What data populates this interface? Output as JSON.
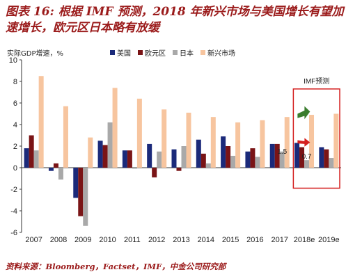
{
  "title": "图表 16: 根据 IMF 预测，2018 年新兴市场与美国增长有望加速增长，欧元区日本略有放缓",
  "source": "资料来源：Bloomberg，Factset，IMF，中金公司研究部",
  "chart_data": {
    "type": "bar",
    "ylabel": "实际GDP增速，%",
    "ylim": [
      -6,
      10
    ],
    "yticks": [
      -6,
      -4,
      -2,
      0,
      2,
      4,
      6,
      8,
      10
    ],
    "grid": false,
    "legend_position": "top",
    "categories": [
      "2007",
      "2008",
      "2009",
      "2010",
      "2011",
      "2012",
      "2013",
      "2014",
      "2015",
      "2016",
      "2017",
      "2018e",
      "2019e"
    ],
    "series": [
      {
        "name": "美国",
        "color": "#1b2a7a",
        "values": [
          1.8,
          -0.3,
          -2.8,
          2.5,
          1.6,
          2.2,
          1.7,
          2.6,
          2.9,
          1.5,
          2.2,
          2.3,
          1.9
        ]
      },
      {
        "name": "欧元区",
        "color": "#7a1416",
        "values": [
          3.0,
          0.4,
          -4.5,
          2.1,
          1.6,
          -0.9,
          -0.3,
          1.3,
          2.0,
          1.8,
          2.2,
          1.9,
          1.7
        ]
      },
      {
        "name": "日本",
        "color": "#a9a9a9",
        "values": [
          1.6,
          -1.1,
          -5.4,
          4.2,
          -0.1,
          1.5,
          2.0,
          0.4,
          1.1,
          1.0,
          1.5,
          0.7,
          0.9
        ]
      },
      {
        "name": "新兴市场",
        "color": "#f7c59f",
        "values": [
          8.5,
          5.7,
          2.8,
          7.4,
          6.4,
          5.4,
          5.1,
          4.7,
          4.2,
          4.4,
          4.7,
          4.9,
          5.0
        ]
      }
    ],
    "annotations": {
      "forecast_box_label": "IMF预测",
      "value_labels": [
        {
          "text": "1.5",
          "category": "2017"
        },
        {
          "text": "0.7",
          "category": "2018e"
        }
      ],
      "arrows": [
        {
          "name": "up-arrow",
          "color": "#3a7d2e",
          "category": "2018e"
        },
        {
          "name": "flat-arrow",
          "color": "#d42020",
          "category": "2018e"
        }
      ],
      "box_color": "#d42020"
    }
  }
}
